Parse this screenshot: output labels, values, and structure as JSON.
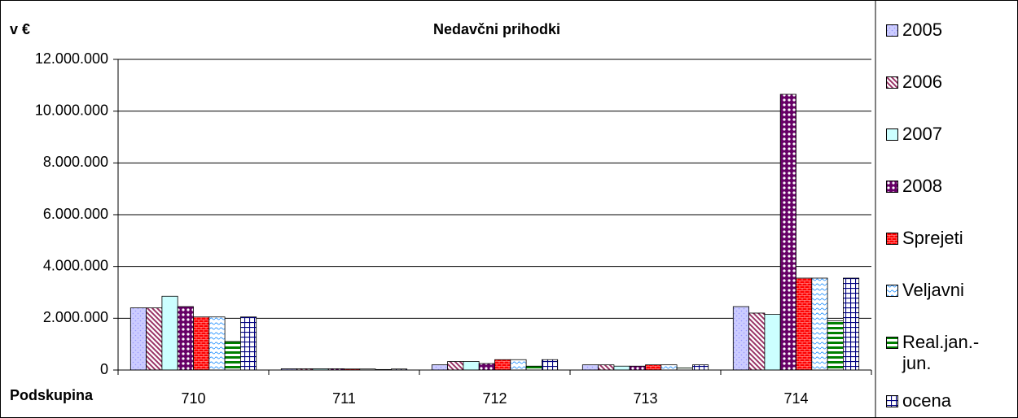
{
  "chart_data": {
    "type": "bar",
    "title": "Nedavčni prihodki",
    "y_label": "v €",
    "x_label": "Podskupina",
    "categories": [
      "710",
      "711",
      "712",
      "713",
      "714"
    ],
    "series": [
      {
        "name": "2005",
        "color": "#9999ff",
        "values": [
          2400000,
          50000,
          200000,
          200000,
          2450000
        ]
      },
      {
        "name": "2006",
        "color": "#993366",
        "values": [
          2400000,
          50000,
          330000,
          200000,
          2200000
        ]
      },
      {
        "name": "2007",
        "color": "#ccffff",
        "values": [
          2850000,
          50000,
          330000,
          150000,
          2150000
        ]
      },
      {
        "name": "2008",
        "color": "#660066",
        "values": [
          2450000,
          50000,
          250000,
          150000,
          10650000
        ]
      },
      {
        "name": "Sprejeti",
        "color": "#ff0000",
        "values": [
          2050000,
          40000,
          400000,
          200000,
          3550000
        ]
      },
      {
        "name": "Veljavni",
        "color": "#3399ff",
        "values": [
          2050000,
          40000,
          400000,
          200000,
          3550000
        ]
      },
      {
        "name": "Real.jan.-jun.",
        "color": "#008000",
        "values": [
          1100000,
          20000,
          150000,
          80000,
          1900000
        ]
      },
      {
        "name": "ocena",
        "color": "#000080",
        "values": [
          2050000,
          40000,
          400000,
          200000,
          3550000
        ]
      }
    ],
    "ylim": [
      0,
      12000000
    ],
    "yticks": [
      {
        "value": 0,
        "label": "0"
      },
      {
        "value": 2000000,
        "label": "2.000.000"
      },
      {
        "value": 4000000,
        "label": "4.000.000"
      },
      {
        "value": 6000000,
        "label": "6.000.000"
      },
      {
        "value": 8000000,
        "label": "8.000.000"
      },
      {
        "value": 10000000,
        "label": "10.000.000"
      },
      {
        "value": 12000000,
        "label": "12.000.000"
      }
    ],
    "grid": true,
    "legend": "right"
  }
}
